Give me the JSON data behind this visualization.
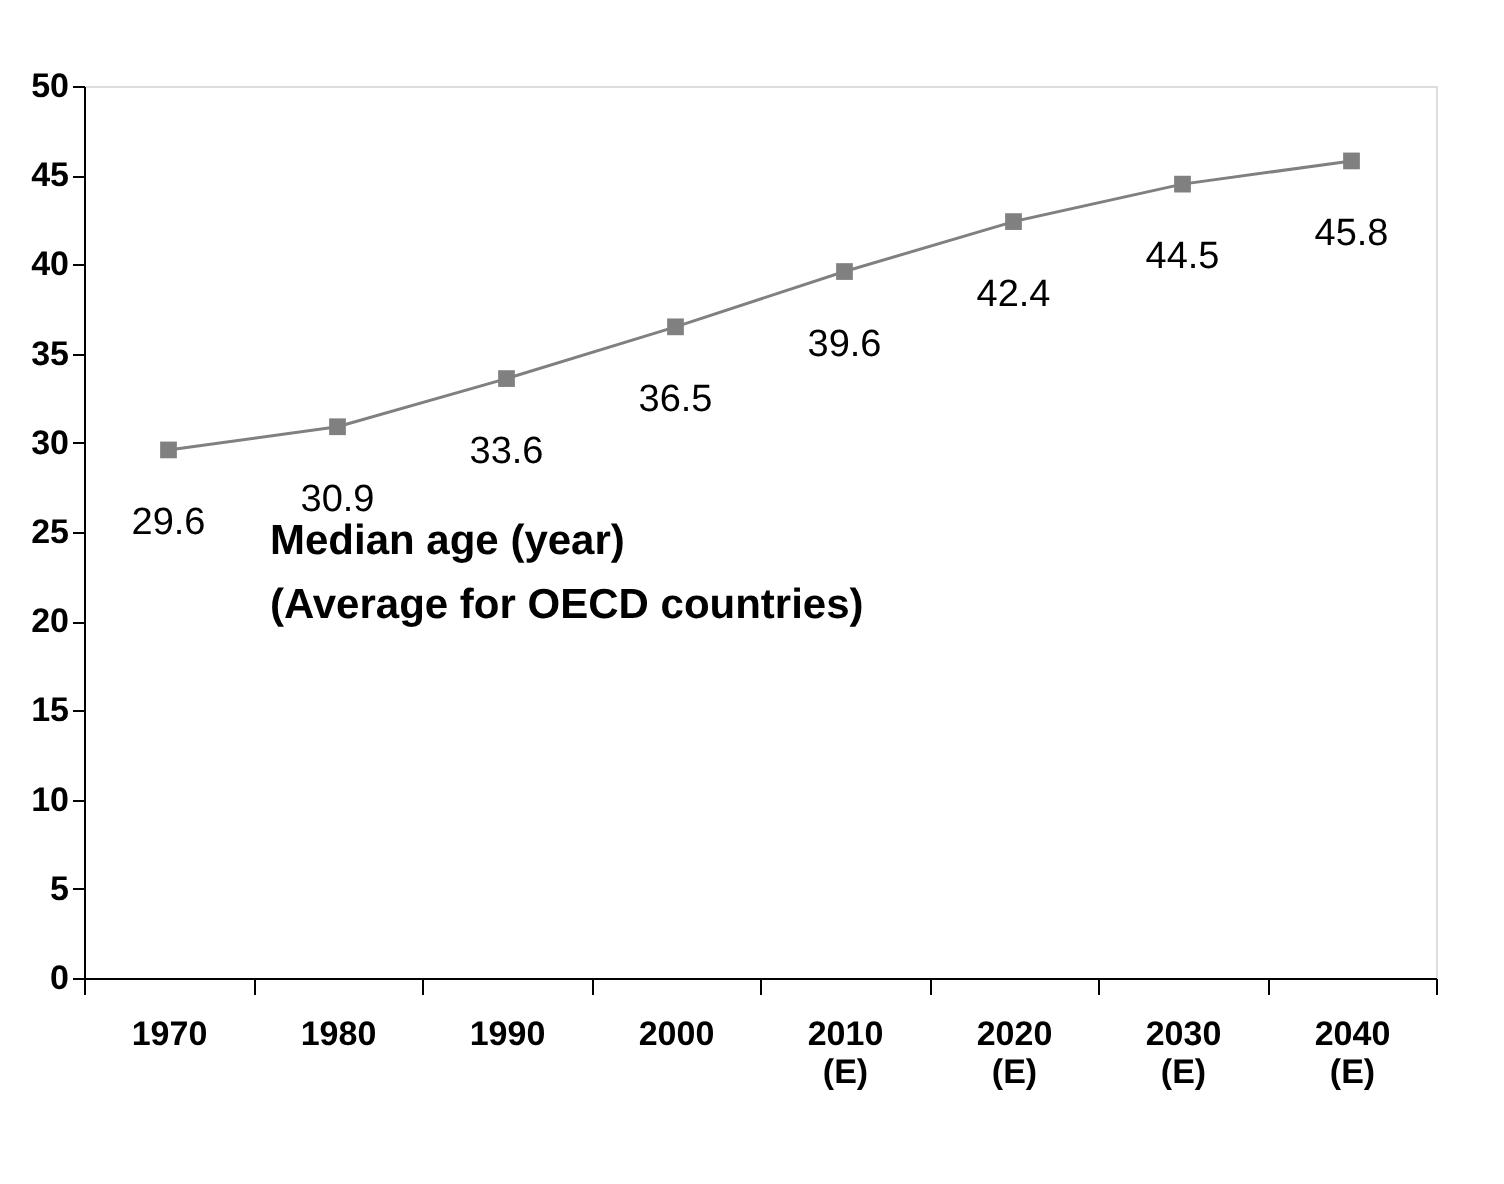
{
  "chart_data": {
    "type": "line",
    "categories": [
      "1970",
      "1980",
      "1990",
      "2000",
      "2010\n(E)",
      "2020\n(E)",
      "2030\n(E)",
      "2040\n(E)"
    ],
    "series": [
      {
        "color": "#808080",
        "values": [
          29.6,
          30.9,
          33.6,
          36.5,
          39.6,
          42.4,
          44.5,
          45.8
        ]
      }
    ],
    "ylim": [
      0,
      50
    ],
    "yticks": [
      0,
      5,
      10,
      15,
      20,
      25,
      30,
      35,
      40,
      45,
      50
    ],
    "data_labels": true,
    "marker": "square",
    "line_style": "solid",
    "grid": false,
    "annotations": [
      "Median age (year)",
      "(Average for OECD countries)"
    ]
  }
}
